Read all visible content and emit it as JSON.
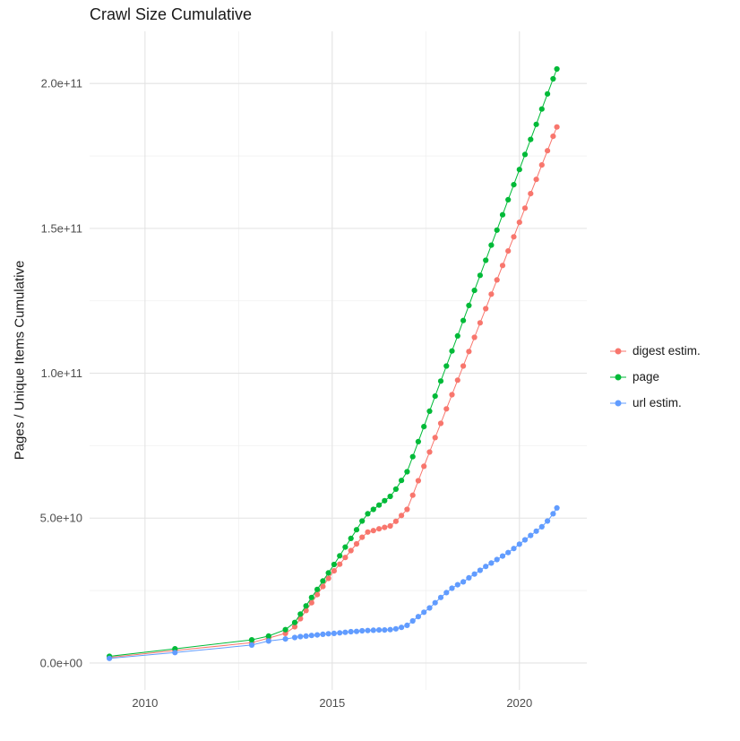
{
  "page": {
    "background": "#ffffff"
  },
  "chart_data": {
    "type": "scatter",
    "title": "Crawl Size Cumulative",
    "xlabel": "",
    "ylabel": "Pages / Unique Items Cumulative",
    "legend_position": "right",
    "grid": true,
    "unit_note": "y values stored in billions (1e9 items)",
    "xlim": [
      2008.52,
      2021.8
    ],
    "ylim_billions": [
      -9.3,
      218
    ],
    "x_ticks": [
      {
        "v": 2010,
        "label": "2010"
      },
      {
        "v": 2015,
        "label": "2015"
      },
      {
        "v": 2020,
        "label": "2020"
      }
    ],
    "x_minor_ticks": [
      2012.5,
      2017.5
    ],
    "y_ticks_billions": [
      {
        "v": 0,
        "label": "0.0e+00"
      },
      {
        "v": 50,
        "label": "5.0e+10"
      },
      {
        "v": 100,
        "label": "1.0e+11"
      },
      {
        "v": 150,
        "label": "1.5e+11"
      },
      {
        "v": 200,
        "label": "2.0e+11"
      }
    ],
    "y_minor_ticks_billions": [
      25,
      75,
      125,
      175
    ],
    "colors": {
      "digest": "#F8766D",
      "page": "#00BA38",
      "url": "#619CFF"
    },
    "series": [
      {
        "name": "digest estim.",
        "color": "#F8766D",
        "points": [
          [
            2009.05,
            1.9
          ],
          [
            2010.8,
            4.3
          ],
          [
            2012.85,
            7.0
          ],
          [
            2013.3,
            8.6
          ],
          [
            2013.75,
            10.2
          ],
          [
            2014.0,
            12.5
          ],
          [
            2014.15,
            15.3
          ],
          [
            2014.3,
            18.1
          ],
          [
            2014.45,
            20.8
          ],
          [
            2014.6,
            23.6
          ],
          [
            2014.75,
            26.4
          ],
          [
            2014.9,
            29.2
          ],
          [
            2015.05,
            31.8
          ],
          [
            2015.2,
            34.1
          ],
          [
            2015.35,
            36.4
          ],
          [
            2015.5,
            38.8
          ],
          [
            2015.65,
            41.1
          ],
          [
            2015.8,
            43.4
          ],
          [
            2015.95,
            45.2
          ],
          [
            2016.1,
            45.7
          ],
          [
            2016.25,
            46.3
          ],
          [
            2016.4,
            46.8
          ],
          [
            2016.55,
            47.3
          ],
          [
            2016.7,
            48.9
          ],
          [
            2016.85,
            50.9
          ],
          [
            2017.0,
            53.0
          ],
          [
            2017.15,
            57.9
          ],
          [
            2017.3,
            62.9
          ],
          [
            2017.45,
            67.9
          ],
          [
            2017.6,
            72.8
          ],
          [
            2017.75,
            77.8
          ],
          [
            2017.9,
            82.7
          ],
          [
            2018.05,
            87.7
          ],
          [
            2018.2,
            92.6
          ],
          [
            2018.35,
            97.6
          ],
          [
            2018.5,
            102.5
          ],
          [
            2018.65,
            107.5
          ],
          [
            2018.8,
            112.4
          ],
          [
            2018.95,
            117.4
          ],
          [
            2019.1,
            122.3
          ],
          [
            2019.25,
            127.3
          ],
          [
            2019.4,
            132.2
          ],
          [
            2019.55,
            137.2
          ],
          [
            2019.7,
            142.2
          ],
          [
            2019.85,
            147.1
          ],
          [
            2020.0,
            152.1
          ],
          [
            2020.15,
            157.0
          ],
          [
            2020.3,
            162.0
          ],
          [
            2020.45,
            166.9
          ],
          [
            2020.6,
            171.9
          ],
          [
            2020.75,
            176.8
          ],
          [
            2020.9,
            181.8
          ],
          [
            2021.0,
            185.0
          ]
        ]
      },
      {
        "name": "page",
        "color": "#00BA38",
        "points": [
          [
            2009.05,
            2.3
          ],
          [
            2010.8,
            4.9
          ],
          [
            2012.85,
            8.0
          ],
          [
            2013.3,
            9.3
          ],
          [
            2013.75,
            11.5
          ],
          [
            2014.0,
            14.0
          ],
          [
            2014.15,
            16.9
          ],
          [
            2014.3,
            19.7
          ],
          [
            2014.45,
            22.6
          ],
          [
            2014.6,
            25.4
          ],
          [
            2014.75,
            28.3
          ],
          [
            2014.9,
            31.1
          ],
          [
            2015.05,
            34.0
          ],
          [
            2015.2,
            37.0
          ],
          [
            2015.35,
            40.0
          ],
          [
            2015.5,
            43.0
          ],
          [
            2015.65,
            46.0
          ],
          [
            2015.8,
            49.0
          ],
          [
            2015.95,
            51.5
          ],
          [
            2016.1,
            53.0
          ],
          [
            2016.25,
            54.5
          ],
          [
            2016.4,
            56.0
          ],
          [
            2016.55,
            57.5
          ],
          [
            2016.7,
            60.0
          ],
          [
            2016.85,
            63.0
          ],
          [
            2017.0,
            66.0
          ],
          [
            2017.15,
            71.2
          ],
          [
            2017.3,
            76.4
          ],
          [
            2017.45,
            81.6
          ],
          [
            2017.6,
            86.9
          ],
          [
            2017.75,
            92.1
          ],
          [
            2017.9,
            97.3
          ],
          [
            2018.05,
            102.5
          ],
          [
            2018.2,
            107.7
          ],
          [
            2018.35,
            112.9
          ],
          [
            2018.5,
            118.2
          ],
          [
            2018.65,
            123.4
          ],
          [
            2018.8,
            128.6
          ],
          [
            2018.95,
            133.8
          ],
          [
            2019.1,
            139.0
          ],
          [
            2019.25,
            144.2
          ],
          [
            2019.4,
            149.4
          ],
          [
            2019.55,
            154.7
          ],
          [
            2019.7,
            159.9
          ],
          [
            2019.85,
            165.1
          ],
          [
            2020.0,
            170.3
          ],
          [
            2020.15,
            175.5
          ],
          [
            2020.3,
            180.7
          ],
          [
            2020.45,
            185.9
          ],
          [
            2020.6,
            191.2
          ],
          [
            2020.75,
            196.4
          ],
          [
            2020.9,
            201.6
          ],
          [
            2021.0,
            205.0
          ]
        ]
      },
      {
        "name": "url estim.",
        "color": "#619CFF",
        "points": [
          [
            2009.05,
            1.6
          ],
          [
            2010.8,
            3.6
          ],
          [
            2012.85,
            6.2
          ],
          [
            2013.3,
            7.6
          ],
          [
            2013.75,
            8.3
          ],
          [
            2014.0,
            8.8
          ],
          [
            2014.15,
            9.1
          ],
          [
            2014.3,
            9.3
          ],
          [
            2014.45,
            9.5
          ],
          [
            2014.6,
            9.7
          ],
          [
            2014.75,
            9.9
          ],
          [
            2014.9,
            10.1
          ],
          [
            2015.05,
            10.2
          ],
          [
            2015.2,
            10.4
          ],
          [
            2015.35,
            10.6
          ],
          [
            2015.5,
            10.8
          ],
          [
            2015.65,
            10.9
          ],
          [
            2015.8,
            11.1
          ],
          [
            2015.95,
            11.2
          ],
          [
            2016.1,
            11.3
          ],
          [
            2016.25,
            11.4
          ],
          [
            2016.4,
            11.4
          ],
          [
            2016.55,
            11.5
          ],
          [
            2016.7,
            11.8
          ],
          [
            2016.85,
            12.3
          ],
          [
            2017.0,
            13.0
          ],
          [
            2017.15,
            14.5
          ],
          [
            2017.3,
            16.0
          ],
          [
            2017.45,
            17.5
          ],
          [
            2017.6,
            19.0
          ],
          [
            2017.75,
            20.8
          ],
          [
            2017.9,
            22.6
          ],
          [
            2018.05,
            24.3
          ],
          [
            2018.2,
            25.8
          ],
          [
            2018.35,
            27.0
          ],
          [
            2018.5,
            28.0
          ],
          [
            2018.65,
            29.4
          ],
          [
            2018.8,
            30.7
          ],
          [
            2018.95,
            32.0
          ],
          [
            2019.1,
            33.3
          ],
          [
            2019.25,
            34.5
          ],
          [
            2019.4,
            35.7
          ],
          [
            2019.55,
            36.9
          ],
          [
            2019.7,
            38.1
          ],
          [
            2019.85,
            39.5
          ],
          [
            2020.0,
            41.0
          ],
          [
            2020.15,
            42.5
          ],
          [
            2020.3,
            44.0
          ],
          [
            2020.45,
            45.5
          ],
          [
            2020.6,
            47.0
          ],
          [
            2020.75,
            49.0
          ],
          [
            2020.9,
            51.5
          ],
          [
            2021.0,
            53.5
          ]
        ]
      }
    ]
  }
}
